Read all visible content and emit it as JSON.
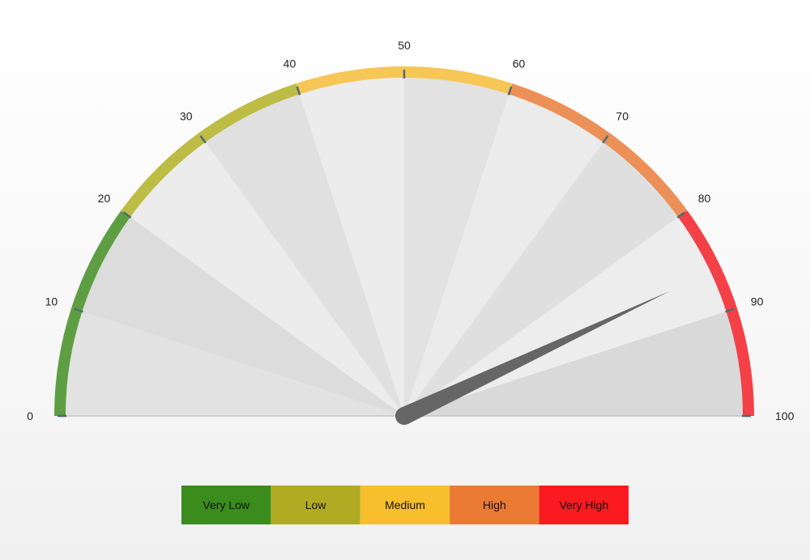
{
  "chart_data": {
    "type": "gauge",
    "min": 0,
    "max": 100,
    "value": 86,
    "tick_values": [
      0,
      10,
      20,
      30,
      40,
      50,
      60,
      70,
      80,
      90,
      100
    ],
    "tick_labels": [
      "0",
      "10",
      "20",
      "30",
      "40",
      "50",
      "60",
      "70",
      "80",
      "90",
      "100"
    ],
    "bands": [
      {
        "from": 0,
        "to": 20,
        "color": "#5e9e43"
      },
      {
        "from": 20,
        "to": 40,
        "color": "#bdbc45"
      },
      {
        "from": 40,
        "to": 60,
        "color": "#f6c656"
      },
      {
        "from": 60,
        "to": 80,
        "color": "#ec9057"
      },
      {
        "from": 80,
        "to": 100,
        "color": "#f34147"
      }
    ],
    "legend": [
      {
        "label": "Very Low",
        "color": "#3a8c1c"
      },
      {
        "label": "Low",
        "color": "#b1ab23"
      },
      {
        "label": "Medium",
        "color": "#f8bf2d"
      },
      {
        "label": "High",
        "color": "#eb7a35"
      },
      {
        "label": "Very High",
        "color": "#fa1a1f"
      }
    ],
    "legend_position": "bottom-center",
    "needle_color": "#666666"
  }
}
